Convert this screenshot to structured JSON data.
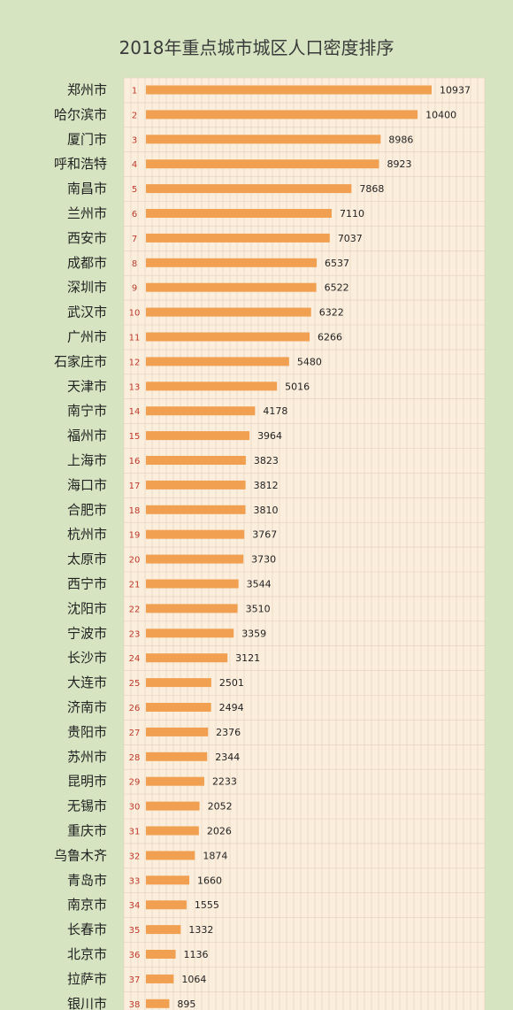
{
  "chart_data": {
    "type": "bar",
    "orientation": "horizontal",
    "title": "2018年重点城市城区人口密度排序",
    "bar_color": "#f0a050",
    "plot_background": "#fbeedd",
    "grid": true,
    "items": [
      {
        "rank": "1",
        "city": "郑州市",
        "value": 10937
      },
      {
        "rank": "2",
        "city": "哈尔滨市",
        "value": 10400
      },
      {
        "rank": "3",
        "city": "厦门市",
        "value": 8986
      },
      {
        "rank": "4",
        "city": "呼和浩特",
        "value": 8923
      },
      {
        "rank": "5",
        "city": "南昌市",
        "value": 7868
      },
      {
        "rank": "6",
        "city": "兰州市",
        "value": 7110
      },
      {
        "rank": "7",
        "city": "西安市",
        "value": 7037
      },
      {
        "rank": "8",
        "city": "成都市",
        "value": 6537
      },
      {
        "rank": "9",
        "city": "深圳市",
        "value": 6522
      },
      {
        "rank": "10",
        "city": "武汉市",
        "value": 6322
      },
      {
        "rank": "11",
        "city": "广州市",
        "value": 6266
      },
      {
        "rank": "12",
        "city": "石家庄市",
        "value": 5480
      },
      {
        "rank": "13",
        "city": "天津市",
        "value": 5016
      },
      {
        "rank": "14",
        "city": "南宁市",
        "value": 4178
      },
      {
        "rank": "15",
        "city": "福州市",
        "value": 3964
      },
      {
        "rank": "16",
        "city": "上海市",
        "value": 3823
      },
      {
        "rank": "17",
        "city": "海口市",
        "value": 3812
      },
      {
        "rank": "18",
        "city": "合肥市",
        "value": 3810
      },
      {
        "rank": "19",
        "city": "杭州市",
        "value": 3767
      },
      {
        "rank": "20",
        "city": "太原市",
        "value": 3730
      },
      {
        "rank": "21",
        "city": "西宁市",
        "value": 3544
      },
      {
        "rank": "22",
        "city": "沈阳市",
        "value": 3510
      },
      {
        "rank": "23",
        "city": "宁波市",
        "value": 3359
      },
      {
        "rank": "24",
        "city": "长沙市",
        "value": 3121
      },
      {
        "rank": "25",
        "city": "大连市",
        "value": 2501
      },
      {
        "rank": "26",
        "city": "济南市",
        "value": 2494
      },
      {
        "rank": "27",
        "city": "贵阳市",
        "value": 2376
      },
      {
        "rank": "28",
        "city": "苏州市",
        "value": 2344
      },
      {
        "rank": "29",
        "city": "昆明市",
        "value": 2233
      },
      {
        "rank": "30",
        "city": "无锡市",
        "value": 2052
      },
      {
        "rank": "31",
        "city": "重庆市",
        "value": 2026
      },
      {
        "rank": "32",
        "city": "乌鲁木齐",
        "value": 1874
      },
      {
        "rank": "33",
        "city": "青岛市",
        "value": 1660
      },
      {
        "rank": "34",
        "city": "南京市",
        "value": 1555
      },
      {
        "rank": "35",
        "city": "长春市",
        "value": 1332
      },
      {
        "rank": "36",
        "city": "北京市",
        "value": 1136
      },
      {
        "rank": "37",
        "city": "拉萨市",
        "value": 1064
      },
      {
        "rank": "38",
        "city": "银川市",
        "value": 895
      }
    ]
  }
}
